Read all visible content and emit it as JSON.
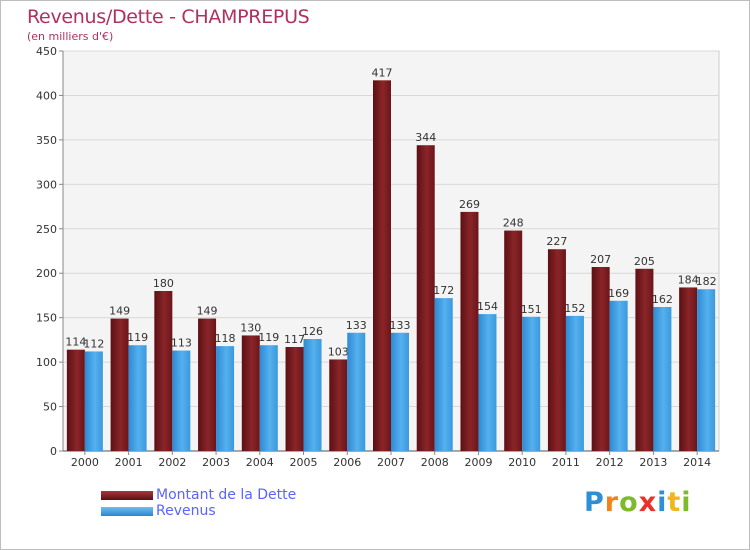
{
  "chart_data": {
    "type": "bar",
    "title": "Revenus/Dette - CHAMPREPUS",
    "subtitle": "(en milliers d'€)",
    "categories": [
      "2000",
      "2001",
      "2002",
      "2003",
      "2004",
      "2005",
      "2006",
      "2007",
      "2008",
      "2009",
      "2010",
      "2011",
      "2012",
      "2013",
      "2014"
    ],
    "series": [
      {
        "name": "Montant de la Dette",
        "values": [
          114,
          149,
          180,
          149,
          130,
          117,
          103,
          417,
          344,
          269,
          248,
          227,
          207,
          205,
          184
        ],
        "color": "#7a1a1e"
      },
      {
        "name": "Revenus",
        "values": [
          112,
          119,
          113,
          118,
          119,
          126,
          133,
          133,
          172,
          154,
          151,
          152,
          169,
          162,
          182
        ],
        "color": "#3fa0e3"
      }
    ],
    "yticks": [
      0,
      50,
      100,
      150,
      200,
      250,
      300,
      350,
      400,
      450
    ],
    "ylim": [
      0,
      450
    ],
    "grid": true,
    "legend_position": "bottom-left"
  },
  "logo": {
    "letters": [
      "P",
      "r",
      "o",
      "x",
      "i",
      "t",
      "i"
    ],
    "colors": [
      "#2d8fd5",
      "#f0841a",
      "#7cbb2a",
      "#e8322a",
      "#2d8fd5",
      "#f0b61a",
      "#7cbb2a"
    ]
  }
}
